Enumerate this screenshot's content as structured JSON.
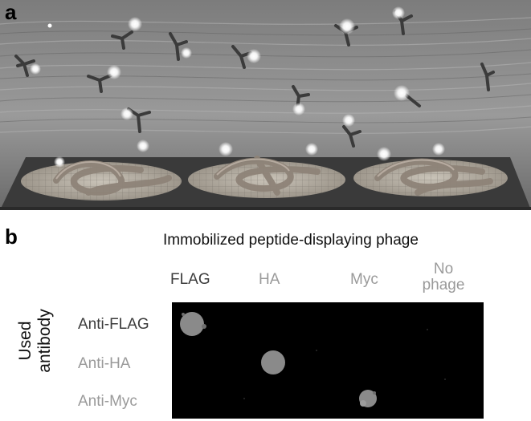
{
  "panel_a": {
    "letter": "a"
  },
  "panel_b": {
    "letter": "b",
    "heading": "Immobilized peptide-displaying phage",
    "columns": [
      {
        "label": "FLAG"
      },
      {
        "label": "HA"
      },
      {
        "label": "Myc"
      },
      {
        "label_line1": "No",
        "label_line2": "phage"
      }
    ],
    "side_label_line1": "Used",
    "side_label_line2": "antibody",
    "rows": [
      {
        "label": "Anti-FLAG"
      },
      {
        "label": "Anti-HA"
      },
      {
        "label": "Anti-Myc"
      }
    ],
    "spot_color": "#8a8a8a",
    "membrane_color": "#000000"
  }
}
